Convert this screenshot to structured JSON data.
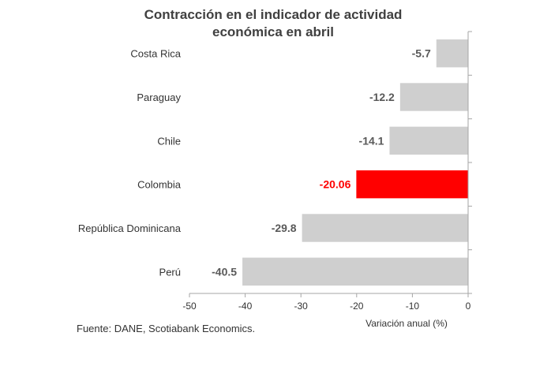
{
  "chart_data": {
    "type": "bar",
    "orientation": "horizontal",
    "title_lines": [
      "Contracción en el indicador de actividad",
      "económica en abril"
    ],
    "categories": [
      "Costa Rica",
      "Paraguay",
      "Chile",
      "Colombia",
      "República Dominicana",
      "Perú"
    ],
    "values": [
      -5.7,
      -12.2,
      -14.1,
      -20.06,
      -29.8,
      -40.5
    ],
    "value_labels": [
      "-5.7",
      "-12.2",
      "-14.1",
      "-20.06",
      "-29.8",
      "-40.5"
    ],
    "highlight": "Colombia",
    "xlim": [
      -50,
      0
    ],
    "xticks": [
      -50,
      -40,
      -30,
      -20,
      -10,
      0
    ],
    "xlabel": "Variación anual (%)",
    "ylabel": "",
    "grid": false,
    "legend": "none",
    "colors": {
      "bar": "#cfcfcf",
      "highlight_bar": "#ff0000",
      "label": "#595959",
      "highlight_label": "#ff0000",
      "title": "#404040"
    }
  },
  "source": "Fuente: DANE, Scotiabank Economics."
}
